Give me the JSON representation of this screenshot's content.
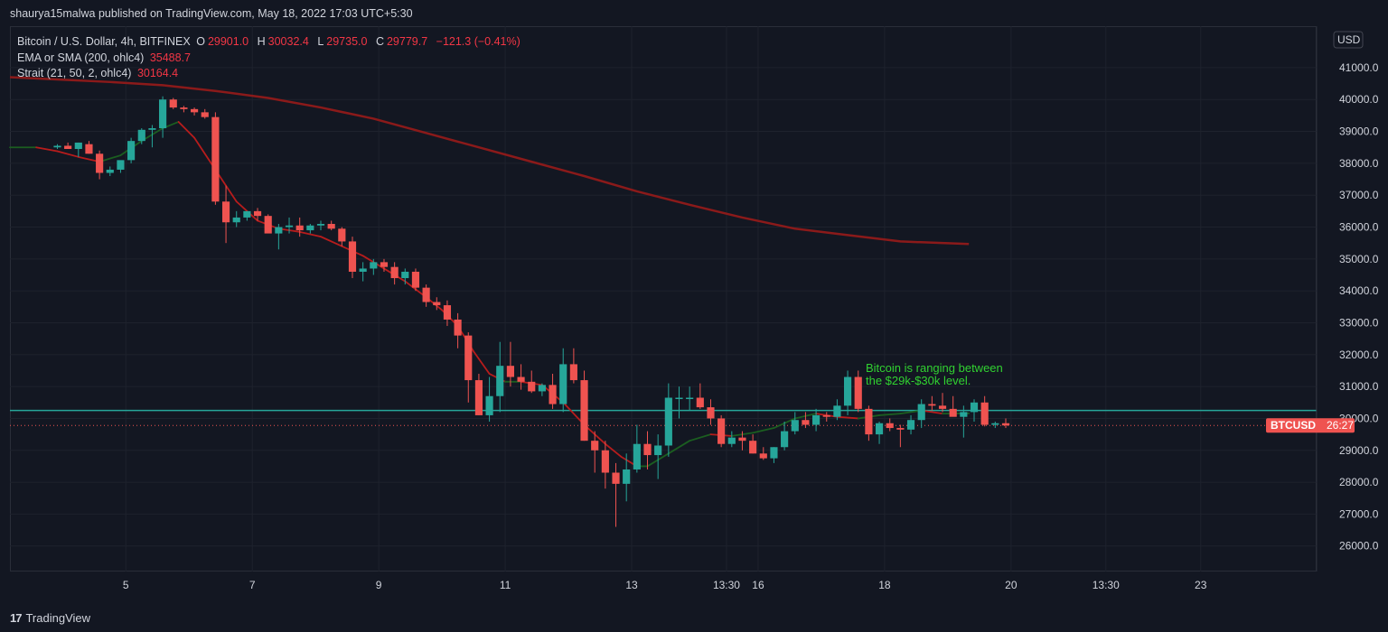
{
  "header": {
    "published": "shaurya15malwa published on TradingView.com, May 18, 2022 17:03 UTC+5:30"
  },
  "legend": {
    "symbol": "Bitcoin / U.S. Dollar, 4h, BITFINEX",
    "o_label": "O",
    "o": "29901.0",
    "h_label": "H",
    "h": "30032.4",
    "l_label": "L",
    "l": "29735.0",
    "c_label": "C",
    "c": "29779.7",
    "change": "−121.3 (−0.41%)",
    "ema_label": "EMA or SMA (200, ohlc4)",
    "ema_value": "35488.7",
    "strait_label": "Strait (21, 50, 2, ohlc4)",
    "strait_value": "30164.4"
  },
  "price_axis": {
    "currency": "USD",
    "tag_symbol": "BTCUSD",
    "tag_countdown": "26:27"
  },
  "annotation": {
    "line1": "Bitcoin is ranging between",
    "line2": "the $29k-$30k level."
  },
  "footer": {
    "brand": "TradingView",
    "logo_glyph": "17"
  },
  "colors": {
    "up": "#26a69a",
    "down": "#ef5350",
    "ema": "#8b1a1a",
    "strait_down": "#b71c1c",
    "strait_up": "#1b5e20",
    "level_line": "#26a69a",
    "annotation": "#31d231",
    "background": "#131722",
    "grid": "#1e222d"
  },
  "chart_data": {
    "type": "candlestick",
    "yticks": [
      26000,
      27000,
      28000,
      29000,
      30000,
      31000,
      32000,
      33000,
      34000,
      35000,
      36000,
      37000,
      38000,
      39000,
      40000,
      41000
    ],
    "ylim": [
      25200,
      42300
    ],
    "xticks": [
      {
        "i": 6.5,
        "label": "5"
      },
      {
        "i": 18.5,
        "label": "7"
      },
      {
        "i": 30.5,
        "label": "9"
      },
      {
        "i": 42.5,
        "label": "11"
      },
      {
        "i": 54.5,
        "label": "13"
      },
      {
        "i": 63.5,
        "label": "13:30"
      },
      {
        "i": 66.5,
        "label": "16"
      },
      {
        "i": 78.5,
        "label": "18"
      },
      {
        "i": 90.5,
        "label": "20"
      },
      {
        "i": 99.5,
        "label": "13:30"
      },
      {
        "i": 108.5,
        "label": "23"
      }
    ],
    "xrange": [
      -4.5,
      119.5
    ],
    "ohlc": [
      [
        38500,
        38600,
        38450,
        38550
      ],
      [
        38550,
        38650,
        38450,
        38450
      ],
      [
        38450,
        38650,
        38200,
        38650
      ],
      [
        38600,
        38700,
        38300,
        38300
      ],
      [
        38300,
        38400,
        37500,
        37700
      ],
      [
        37700,
        37900,
        37600,
        37800
      ],
      [
        37800,
        38000,
        37700,
        38100
      ],
      [
        38100,
        38800,
        38000,
        38700
      ],
      [
        38700,
        39100,
        38600,
        39050
      ],
      [
        39050,
        39200,
        38500,
        39100
      ],
      [
        39100,
        40100,
        38800,
        40000
      ],
      [
        40000,
        40050,
        39700,
        39750
      ],
      [
        39750,
        39800,
        39600,
        39700
      ],
      [
        39700,
        39750,
        39500,
        39600
      ],
      [
        39600,
        39700,
        39400,
        39450
      ],
      [
        39450,
        39600,
        36700,
        36800
      ],
      [
        36800,
        37300,
        35500,
        36150
      ],
      [
        36150,
        36500,
        36000,
        36300
      ],
      [
        36300,
        36500,
        36200,
        36500
      ],
      [
        36500,
        36600,
        36200,
        36350
      ],
      [
        36350,
        36400,
        35900,
        35800
      ],
      [
        35800,
        36100,
        35300,
        36000
      ],
      [
        36000,
        36300,
        35800,
        36050
      ],
      [
        36050,
        36300,
        35700,
        35900
      ],
      [
        35900,
        36100,
        35800,
        36050
      ],
      [
        36050,
        36200,
        35900,
        36100
      ],
      [
        36100,
        36200,
        35900,
        35950
      ],
      [
        35950,
        36000,
        35400,
        35550
      ],
      [
        35550,
        35700,
        34400,
        34600
      ],
      [
        34600,
        34900,
        34300,
        34700
      ],
      [
        34700,
        35000,
        34500,
        34900
      ],
      [
        34900,
        35000,
        34600,
        34750
      ],
      [
        34750,
        34900,
        34200,
        34400
      ],
      [
        34400,
        34700,
        34200,
        34600
      ],
      [
        34600,
        34700,
        34000,
        34100
      ],
      [
        34100,
        34200,
        33500,
        33650
      ],
      [
        33650,
        33800,
        33400,
        33550
      ],
      [
        33550,
        33700,
        32900,
        33100
      ],
      [
        33100,
        33300,
        32200,
        32600
      ],
      [
        32600,
        32700,
        30500,
        31200
      ],
      [
        31200,
        31400,
        30100,
        30100
      ],
      [
        30100,
        31300,
        29900,
        30700
      ],
      [
        30700,
        32400,
        30200,
        31650
      ],
      [
        31650,
        32400,
        31000,
        31300
      ],
      [
        31300,
        31700,
        30900,
        31150
      ],
      [
        31150,
        31500,
        30800,
        30850
      ],
      [
        30850,
        31100,
        30700,
        31050
      ],
      [
        31050,
        31400,
        30300,
        30450
      ],
      [
        30450,
        32200,
        30200,
        31700
      ],
      [
        31700,
        32200,
        31100,
        31200
      ],
      [
        31200,
        31500,
        29300,
        29300
      ],
      [
        29300,
        29600,
        28300,
        29000
      ],
      [
        29000,
        29300,
        27800,
        28300
      ],
      [
        28300,
        28600,
        26600,
        27950
      ],
      [
        27950,
        28900,
        27400,
        28400
      ],
      [
        28400,
        29800,
        28300,
        29200
      ],
      [
        29200,
        29600,
        28400,
        28850
      ],
      [
        28850,
        29500,
        28100,
        29150
      ],
      [
        29150,
        31100,
        28800,
        30650
      ],
      [
        30650,
        31000,
        30000,
        30650
      ],
      [
        30650,
        31000,
        30250,
        30650
      ],
      [
        30650,
        31100,
        30300,
        30350
      ],
      [
        30350,
        30600,
        29800,
        30000
      ],
      [
        30000,
        30100,
        29100,
        29200
      ],
      [
        29200,
        29600,
        29100,
        29400
      ],
      [
        29400,
        29600,
        29000,
        29300
      ],
      [
        29300,
        29500,
        28900,
        28900
      ],
      [
        28900,
        29100,
        28700,
        28750
      ],
      [
        28750,
        29100,
        28600,
        29100
      ],
      [
        29100,
        29900,
        29000,
        29600
      ],
      [
        29600,
        30200,
        29500,
        29950
      ],
      [
        29950,
        30200,
        29700,
        29800
      ],
      [
        29800,
        30300,
        29600,
        30100
      ],
      [
        30100,
        30200,
        29900,
        30050
      ],
      [
        30050,
        30600,
        29950,
        30400
      ],
      [
        30400,
        31500,
        30100,
        31300
      ],
      [
        31300,
        31500,
        30200,
        30300
      ],
      [
        30300,
        30400,
        29300,
        29500
      ],
      [
        29500,
        29900,
        29200,
        29850
      ],
      [
        29850,
        30000,
        29600,
        29700
      ],
      [
        29700,
        29800,
        29100,
        29650
      ],
      [
        29650,
        30100,
        29500,
        29950
      ],
      [
        29950,
        30600,
        29700,
        30450
      ],
      [
        30450,
        30700,
        30250,
        30400
      ],
      [
        30400,
        30800,
        30200,
        30300
      ],
      [
        30300,
        30700,
        30100,
        30050
      ],
      [
        30050,
        30400,
        29400,
        30200
      ],
      [
        30200,
        30600,
        29900,
        30500
      ],
      [
        30500,
        30700,
        29750,
        29800
      ],
      [
        29800,
        29900,
        29700,
        29850
      ],
      [
        29850,
        30000,
        29700,
        29780
      ]
    ],
    "ema200": [
      [
        -4.5,
        40700
      ],
      [
        0,
        40630
      ],
      [
        5,
        40550
      ],
      [
        10,
        40450
      ],
      [
        15,
        40270
      ],
      [
        20,
        40050
      ],
      [
        25,
        39750
      ],
      [
        30,
        39400
      ],
      [
        35,
        38950
      ],
      [
        40,
        38500
      ],
      [
        45,
        38050
      ],
      [
        50,
        37600
      ],
      [
        55,
        37120
      ],
      [
        60,
        36700
      ],
      [
        65,
        36300
      ],
      [
        70,
        35950
      ],
      [
        75,
        35750
      ],
      [
        80,
        35550
      ],
      [
        86.5,
        35470
      ]
    ],
    "strait": [
      [
        -4.5,
        38500
      ],
      [
        -2,
        38500
      ],
      [
        0,
        38380
      ],
      [
        2,
        38200
      ],
      [
        4,
        38050
      ],
      [
        6,
        38250
      ],
      [
        8,
        38700
      ],
      [
        10,
        39100
      ],
      [
        11.5,
        39300
      ],
      [
        13,
        38800
      ],
      [
        15,
        37800
      ],
      [
        17,
        36800
      ],
      [
        19,
        36200
      ],
      [
        21,
        35950
      ],
      [
        23,
        35850
      ],
      [
        25,
        35700
      ],
      [
        27,
        35400
      ],
      [
        29,
        35100
      ],
      [
        31,
        34700
      ],
      [
        33,
        34300
      ],
      [
        35,
        33800
      ],
      [
        36.5,
        33400
      ],
      [
        38,
        32900
      ],
      [
        39.5,
        32100
      ],
      [
        41,
        31400
      ],
      [
        42.5,
        31150
      ],
      [
        44,
        31150
      ],
      [
        46,
        31050
      ],
      [
        48,
        30500
      ],
      [
        50,
        29800
      ],
      [
        52,
        29200
      ],
      [
        53.5,
        28800
      ],
      [
        55,
        28500
      ],
      [
        56,
        28500
      ],
      [
        58,
        28900
      ],
      [
        60,
        29300
      ],
      [
        62,
        29500
      ],
      [
        64,
        29450
      ],
      [
        66,
        29550
      ],
      [
        68,
        29700
      ],
      [
        70,
        30000
      ],
      [
        72,
        30150
      ],
      [
        74,
        30050
      ],
      [
        76,
        30000
      ],
      [
        78,
        30100
      ],
      [
        80,
        30150
      ],
      [
        82,
        30250
      ],
      [
        84,
        30150
      ],
      [
        86.5,
        30160
      ]
    ],
    "level_line": 30250,
    "last_price": 29779.7
  }
}
